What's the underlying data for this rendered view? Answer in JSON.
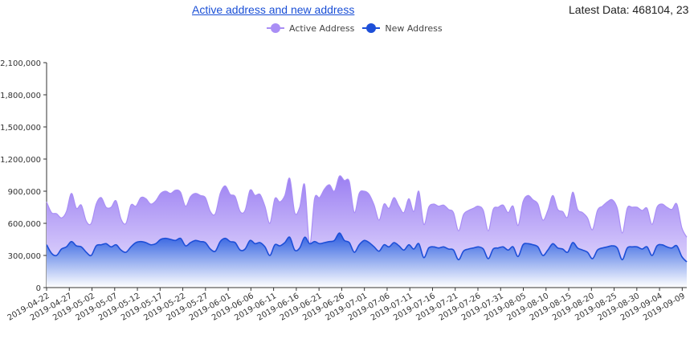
{
  "header": {
    "title": "Active address and new address",
    "latest_prefix": "Latest Data: 468104, 23"
  },
  "legend": [
    {
      "name": "Active Address",
      "color": "#a98ef5"
    },
    {
      "name": "New Address",
      "color": "#1d4fd8"
    }
  ],
  "chart_data": {
    "type": "area",
    "x_tick_labels": [
      "2019-04-22",
      "2019-04-27",
      "2019-05-02",
      "2019-05-07",
      "2019-05-12",
      "2019-05-17",
      "2019-05-22",
      "2019-05-27",
      "2019-06-01",
      "2019-06-06",
      "2019-06-11",
      "2019-06-16",
      "2019-06-21",
      "2019-06-26",
      "2019-07-01",
      "2019-07-06",
      "2019-07-11",
      "2019-07-16",
      "2019-07-21",
      "2019-07-26",
      "2019-07-31",
      "2019-08-05",
      "2019-08-10",
      "2019-08-15",
      "2019-08-20",
      "2019-08-25",
      "2019-08-30",
      "2019-09-04",
      "2019-09-09"
    ],
    "y_tick_labels": [
      "0",
      "300,000",
      "600,000",
      "900,000",
      "1,200,000",
      "1,500,000",
      "1,800,000",
      "2,100,000"
    ],
    "y_ticks": [
      0,
      300000,
      600000,
      900000,
      1200000,
      1500000,
      1800000,
      2100000
    ],
    "ylim": [
      0,
      2100000
    ],
    "x_start": "2019-04-22",
    "x_end": "2019-09-10",
    "series": [
      {
        "name": "Active Address",
        "color": "#a98ef5",
        "values": [
          800000,
          700000,
          690000,
          650000,
          710000,
          880000,
          740000,
          770000,
          620000,
          600000,
          780000,
          840000,
          750000,
          750000,
          810000,
          640000,
          600000,
          770000,
          760000,
          840000,
          830000,
          780000,
          810000,
          880000,
          900000,
          880000,
          910000,
          890000,
          760000,
          850000,
          880000,
          860000,
          840000,
          710000,
          690000,
          880000,
          950000,
          870000,
          850000,
          710000,
          720000,
          910000,
          860000,
          870000,
          760000,
          600000,
          830000,
          800000,
          860000,
          1020000,
          700000,
          750000,
          960000,
          400000,
          830000,
          840000,
          920000,
          960000,
          900000,
          1040000,
          1000000,
          990000,
          700000,
          880000,
          900000,
          870000,
          770000,
          630000,
          780000,
          740000,
          840000,
          760000,
          700000,
          830000,
          710000,
          900000,
          590000,
          750000,
          780000,
          760000,
          770000,
          730000,
          700000,
          530000,
          680000,
          720000,
          740000,
          760000,
          720000,
          530000,
          730000,
          750000,
          770000,
          700000,
          760000,
          580000,
          800000,
          860000,
          820000,
          780000,
          630000,
          720000,
          860000,
          730000,
          710000,
          660000,
          890000,
          730000,
          700000,
          650000,
          540000,
          720000,
          760000,
          800000,
          820000,
          740000,
          510000,
          740000,
          750000,
          750000,
          720000,
          740000,
          590000,
          750000,
          780000,
          750000,
          730000,
          780000,
          560000,
          470000
        ],
        "note": ""
      },
      {
        "name": "New Address",
        "color": "#1d4fd8",
        "values": [
          400000,
          320000,
          300000,
          360000,
          380000,
          430000,
          390000,
          380000,
          330000,
          300000,
          390000,
          400000,
          410000,
          380000,
          400000,
          350000,
          330000,
          380000,
          420000,
          430000,
          420000,
          400000,
          410000,
          450000,
          460000,
          450000,
          440000,
          460000,
          390000,
          420000,
          440000,
          430000,
          420000,
          360000,
          340000,
          430000,
          460000,
          430000,
          420000,
          350000,
          360000,
          440000,
          410000,
          420000,
          380000,
          300000,
          400000,
          390000,
          420000,
          470000,
          350000,
          370000,
          470000,
          410000,
          430000,
          410000,
          420000,
          430000,
          440000,
          510000,
          440000,
          420000,
          330000,
          400000,
          440000,
          420000,
          380000,
          340000,
          400000,
          380000,
          420000,
          390000,
          350000,
          400000,
          360000,
          410000,
          280000,
          370000,
          380000,
          370000,
          380000,
          360000,
          350000,
          260000,
          340000,
          360000,
          370000,
          380000,
          360000,
          270000,
          360000,
          370000,
          380000,
          350000,
          380000,
          290000,
          400000,
          410000,
          400000,
          380000,
          300000,
          350000,
          410000,
          370000,
          360000,
          330000,
          420000,
          370000,
          350000,
          330000,
          270000,
          350000,
          370000,
          380000,
          390000,
          370000,
          260000,
          370000,
          380000,
          380000,
          360000,
          380000,
          300000,
          390000,
          400000,
          380000,
          370000,
          390000,
          290000,
          240000
        ]
      }
    ]
  }
}
